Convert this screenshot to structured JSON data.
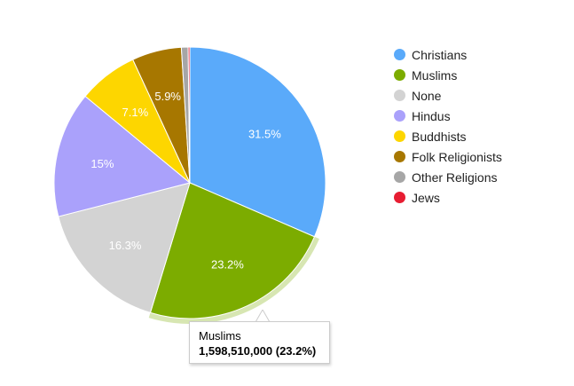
{
  "chart_data": {
    "type": "pie",
    "title": "",
    "legend_position": "right",
    "slices": [
      {
        "label": "Christians",
        "value": 31.5,
        "color": "#5aaafa",
        "data_label": "31.5%"
      },
      {
        "label": "Muslims",
        "value": 23.2,
        "color": "#7cac00",
        "data_label": "23.2%"
      },
      {
        "label": "None",
        "value": 16.3,
        "color": "#d3d3d3",
        "data_label": "16.3%"
      },
      {
        "label": "Hindus",
        "value": 15.0,
        "color": "#aaa1fb",
        "data_label": "15%"
      },
      {
        "label": "Buddhists",
        "value": 7.1,
        "color": "#fdd600",
        "data_label": "7.1%"
      },
      {
        "label": "Folk Religionists",
        "value": 5.9,
        "color": "#a77700",
        "data_label": "5.9%"
      },
      {
        "label": "Other Religions",
        "value": 0.8,
        "color": "#a6a6a6",
        "data_label": ""
      },
      {
        "label": "Jews",
        "value": 0.2,
        "color": "#e71d32",
        "data_label": ""
      }
    ],
    "highlighted": "Muslims"
  },
  "tooltip": {
    "title": "Muslims",
    "value": "1,598,510,000 (23.2%)"
  }
}
